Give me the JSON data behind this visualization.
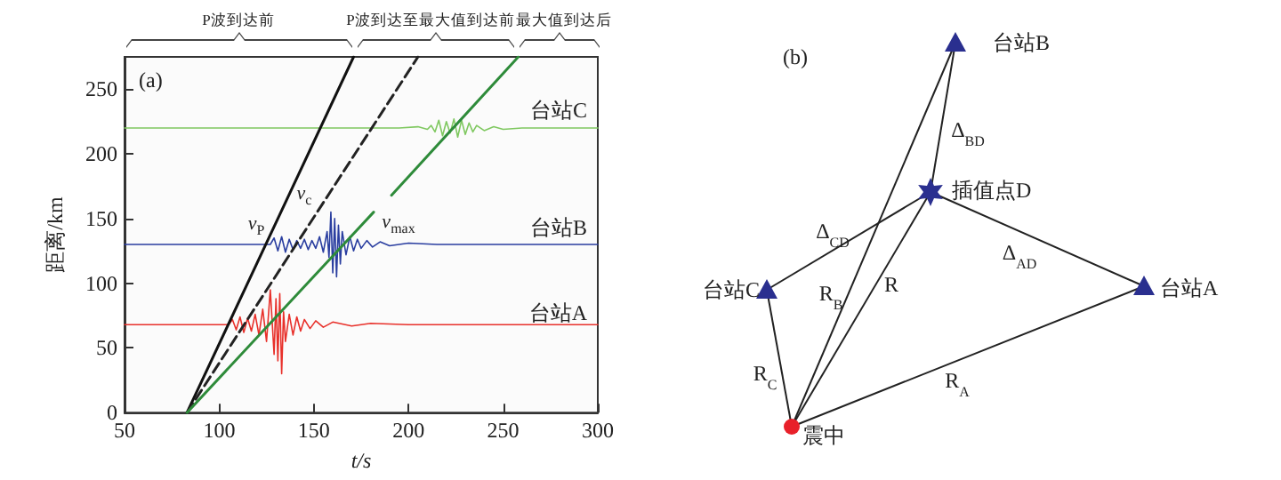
{
  "chart_data": [
    {
      "type": "line",
      "xlabel": "t/s",
      "ylabel": "距离/km",
      "xlim": [
        50,
        300
      ],
      "xticks": [
        50,
        100,
        150,
        200,
        250,
        300
      ],
      "ylim": [
        0,
        275
      ],
      "yticks": [
        0,
        50,
        100,
        150,
        200,
        250
      ],
      "grid": false,
      "marker": "none",
      "series": [
        {
          "color": "#e8302a",
          "x": [
            50,
            105,
            107,
            109,
            111,
            113,
            115,
            117,
            119,
            121,
            123,
            125,
            127,
            129,
            130,
            131,
            132,
            133,
            134,
            135,
            137,
            139,
            141,
            143,
            145,
            148,
            151,
            155,
            160,
            170,
            180,
            200,
            230,
            300
          ],
          "values": [
            68,
            68,
            72,
            64,
            74,
            62,
            73,
            63,
            76,
            60,
            80,
            55,
            95,
            45,
            88,
            40,
            92,
            30,
            78,
            55,
            76,
            60,
            74,
            63,
            72,
            65,
            71,
            66,
            70,
            67,
            69,
            68,
            68,
            68
          ]
        },
        {
          "color": "#2a3ea0",
          "x": [
            50,
            127,
            129,
            131,
            133,
            135,
            137,
            139,
            141,
            143,
            145,
            147,
            149,
            151,
            153,
            155,
            157,
            158,
            159,
            160,
            161,
            162,
            163,
            164,
            165,
            167,
            169,
            171,
            173,
            175,
            178,
            181,
            185,
            190,
            200,
            215,
            230,
            250,
            300
          ],
          "values": [
            130,
            130,
            135,
            125,
            136,
            124,
            134,
            126,
            133,
            127,
            134,
            126,
            133,
            127,
            136,
            124,
            140,
            120,
            155,
            108,
            150,
            105,
            145,
            115,
            140,
            122,
            136,
            125,
            134,
            127,
            133,
            128,
            132,
            129,
            131,
            130,
            130,
            130,
            130
          ]
        },
        {
          "color": "#7fc860",
          "x": [
            50,
            195,
            205,
            210,
            212,
            214,
            216,
            218,
            220,
            222,
            224,
            226,
            228,
            230,
            232,
            234,
            236,
            240,
            245,
            250,
            260,
            300
          ],
          "values": [
            220,
            220,
            221,
            219,
            222,
            217,
            226,
            214,
            225,
            216,
            227,
            213,
            226,
            215,
            224,
            217,
            222,
            218,
            221,
            219,
            220,
            220
          ]
        },
        {
          "color": "#111111",
          "line_style": "solid",
          "x": [
            83,
            171
          ],
          "values": [
            0,
            275
          ]
        },
        {
          "color": "#222222",
          "line_style": "dashed",
          "x": [
            83,
            205
          ],
          "values": [
            0,
            275
          ]
        },
        {
          "color": "#2e8b3a",
          "line_style": "solid",
          "x": [
            83,
            181.6,
            186,
            191,
            258
          ],
          "values": [
            0,
            155,
            null,
            168,
            275
          ]
        }
      ],
      "annotations": [
        "(a)",
        "台站C",
        "台站B",
        "台站A",
        "v$_{P}$",
        "v$_{c}$",
        "v$_{max}$",
        "P波到达前",
        "P波到达至最大值到达前",
        "最大值到达后"
      ]
    },
    {
      "type": "other",
      "annotations": [
        "(b)",
        "台站B",
        "Δ$_{BD}$",
        "插值点D",
        "Δ$_{CD}$",
        "Δ$_{AD}$",
        "台站C",
        "R$_{B}$",
        "R",
        "台站A",
        "R$_{C}$",
        "R$_{A}$",
        "震中"
      ]
    }
  ]
}
